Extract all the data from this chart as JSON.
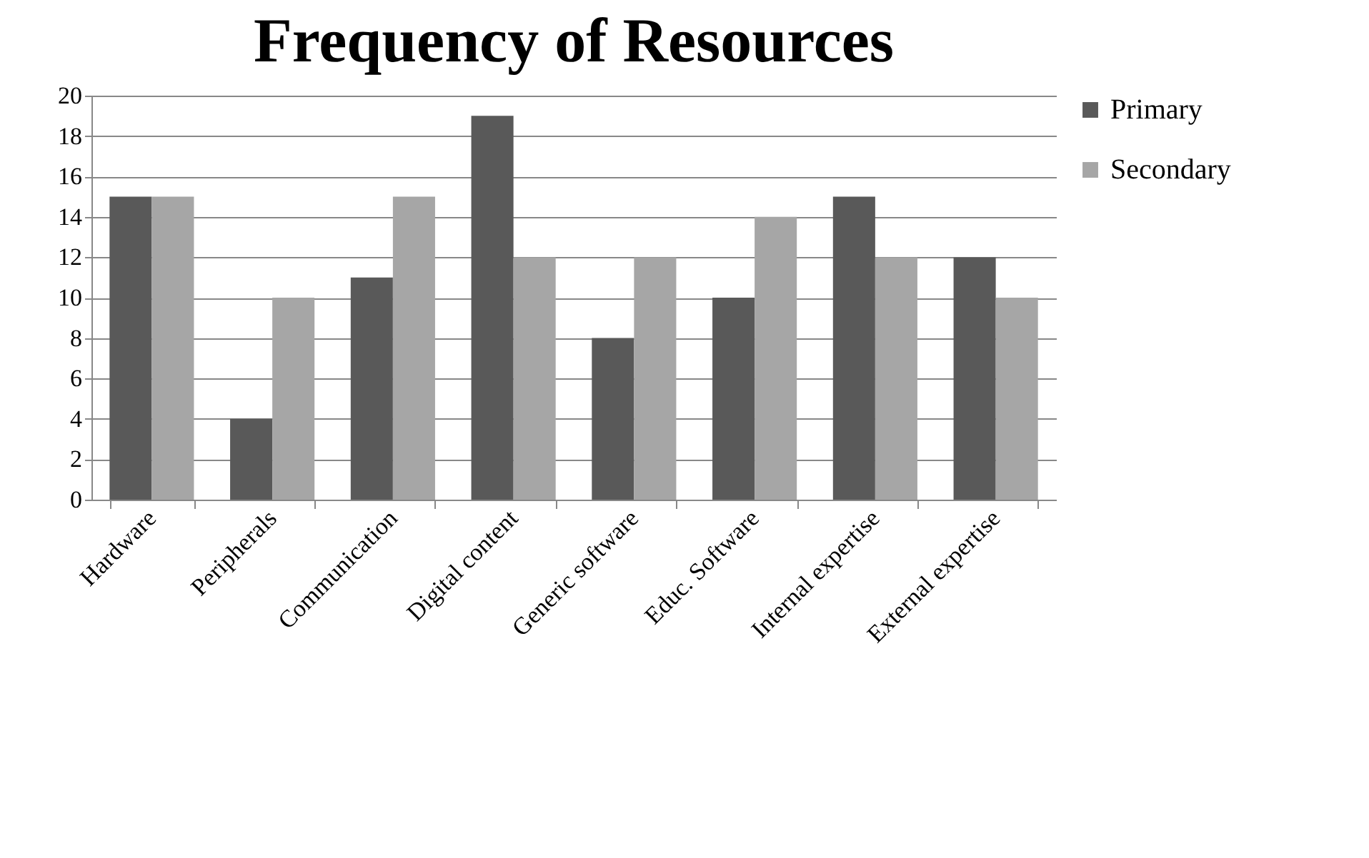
{
  "chart_data": {
    "type": "bar",
    "title": "Frequency of Resources",
    "categories": [
      "Hardware",
      "Peripherals",
      "Communication",
      "Digital content",
      "Generic software",
      "Educ. Software",
      "Internal expertise",
      "External expertise"
    ],
    "series": [
      {
        "name": "Primary",
        "color": "#595959",
        "values": [
          15,
          4,
          11,
          19,
          8,
          10,
          15,
          12
        ]
      },
      {
        "name": "Secondary",
        "color": "#a6a6a6",
        "values": [
          15,
          10,
          15,
          12,
          12,
          14,
          12,
          10
        ]
      }
    ],
    "ylim": [
      0,
      20
    ],
    "yticks": [
      0,
      2,
      4,
      6,
      8,
      10,
      12,
      14,
      16,
      18,
      20
    ],
    "grid": "y",
    "legend": "right"
  }
}
